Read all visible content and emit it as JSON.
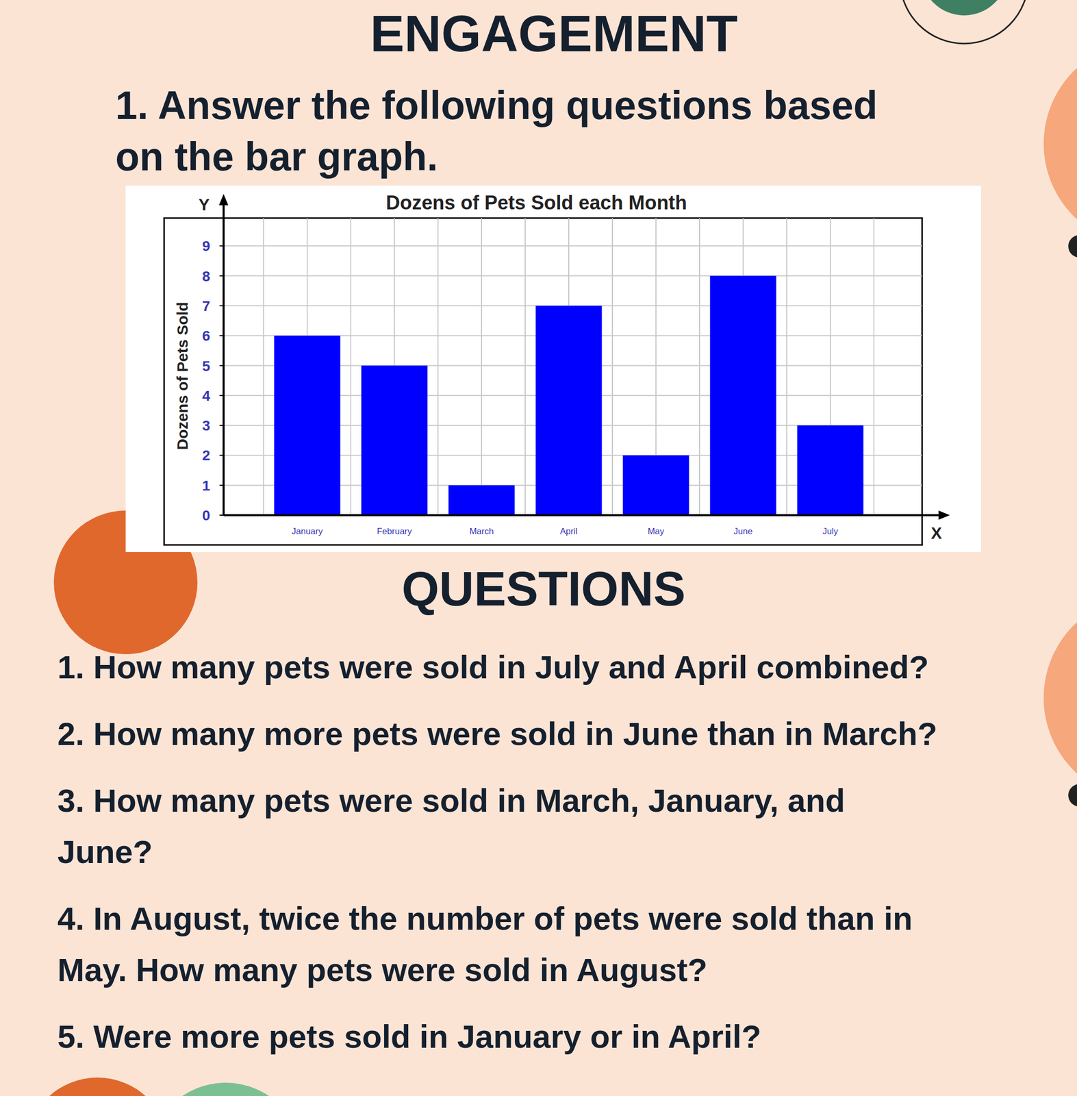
{
  "page": {
    "title": "ENGAGEMENT",
    "instruction": [
      "1. Answer the following questions based",
      "on the bar graph."
    ],
    "questions_title": "QUESTIONS",
    "questions": [
      [
        "1. How many pets were sold in July and April combined?"
      ],
      [
        "2. How many more pets were sold in June than in March?"
      ],
      [
        "3. How many pets were sold in March, January, and",
        "June?"
      ],
      [
        "4. In August, twice the number of pets were sold than in",
        "May. How many pets were sold in August?"
      ],
      [
        "5. Were more pets sold in January or in April?"
      ]
    ]
  },
  "chart_data": {
    "type": "bar",
    "title": "Dozens of Pets Sold each Month",
    "y_label": "Dozens of Pets Sold",
    "x_axis_letter": "X",
    "y_axis_letter": "Y",
    "categories": [
      "January",
      "February",
      "March",
      "April",
      "May",
      "June",
      "July"
    ],
    "values": [
      6,
      5,
      1,
      7,
      2,
      8,
      3
    ],
    "color": "#0000ff",
    "ylim": [
      0,
      10
    ],
    "yticks": [
      0,
      1,
      2,
      3,
      4,
      5,
      6,
      7,
      8,
      9
    ],
    "grid": true
  }
}
